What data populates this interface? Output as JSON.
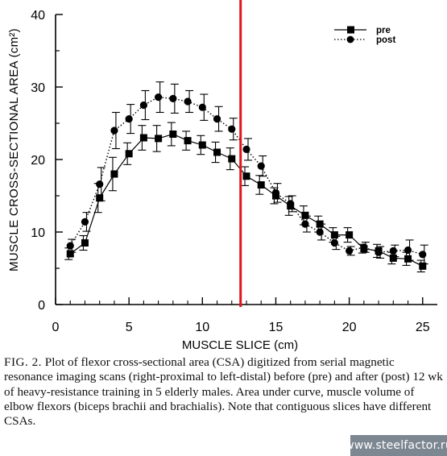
{
  "chart_data": {
    "type": "line",
    "ylabel": "MUSCLE CROSS-SECTIONAL AREA (cm²)",
    "xlabel": "MUSCLE SLICE (cm)",
    "xlim": [
      0,
      26
    ],
    "ylim": [
      0,
      40
    ],
    "x_ticks": [
      0,
      5,
      10,
      15,
      20,
      25
    ],
    "y_ticks": [
      0,
      10,
      20,
      30,
      40
    ],
    "legend_position": "top-right",
    "series": [
      {
        "name": "pre",
        "marker": "square",
        "line_style": "solid",
        "x": [
          1,
          2,
          3,
          4,
          5,
          6,
          7,
          8,
          9,
          10,
          11,
          12,
          13,
          14,
          15,
          16,
          17,
          18,
          19,
          20,
          21,
          22,
          23,
          24,
          25
        ],
        "y": [
          7.0,
          8.5,
          14.7,
          18.0,
          20.8,
          23.0,
          22.9,
          23.5,
          22.6,
          22.0,
          21.0,
          20.1,
          17.7,
          16.5,
          15.0,
          13.6,
          12.3,
          11.1,
          9.6,
          9.6,
          7.7,
          7.4,
          6.4,
          6.3,
          5.3
        ],
        "err": [
          0.8,
          1.0,
          2.0,
          2.3,
          1.5,
          1.7,
          1.8,
          1.6,
          1.3,
          1.3,
          1.4,
          1.5,
          1.3,
          1.3,
          1.1,
          1.3,
          1.3,
          1.1,
          1.0,
          1.0,
          0.6,
          0.9,
          0.8,
          0.9,
          0.8
        ]
      },
      {
        "name": "post",
        "marker": "circle",
        "line_style": "dotted",
        "x": [
          1,
          2,
          3,
          4,
          5,
          6,
          7,
          8,
          9,
          10,
          11,
          12,
          13,
          14,
          15,
          16,
          17,
          18,
          19,
          20,
          21,
          22,
          23,
          24,
          25
        ],
        "y": [
          8.1,
          11.4,
          16.6,
          24.0,
          25.6,
          27.5,
          28.6,
          28.4,
          28.0,
          27.2,
          25.6,
          24.2,
          21.4,
          19.1,
          15.4,
          13.9,
          11.1,
          10.0,
          8.5,
          7.4,
          7.9,
          7.2,
          7.4,
          7.5,
          6.9
        ],
        "err": [
          0.9,
          1.3,
          2.3,
          2.5,
          2.0,
          2.0,
          2.1,
          2.0,
          1.5,
          1.8,
          1.7,
          1.5,
          1.5,
          1.4,
          1.3,
          1.1,
          1.1,
          1.1,
          0.9,
          0.6,
          0.7,
          0.8,
          0.8,
          1.4,
          1.3
        ]
      }
    ],
    "reference_line": {
      "x": 12.6,
      "color": "#e0141e"
    }
  },
  "caption": {
    "label": "FIG. 2.",
    "text": "Plot of flexor cross-sectional area (CSA) digitized from serial magnetic resonance imaging scans (right-proximal to left-distal) before (pre) and after (post) 12 wk of heavy-resistance training in 5 elderly males. Area under curve, muscle volume of elbow flexors (biceps brachii and brachialis). Note that contiguous slices have different CSAs."
  },
  "watermark": {
    "text": "www.steelfactor.ru"
  },
  "colors": {
    "axis": "#000000",
    "reference_line": "#e0141e",
    "watermark_bg": "#7d8791"
  }
}
